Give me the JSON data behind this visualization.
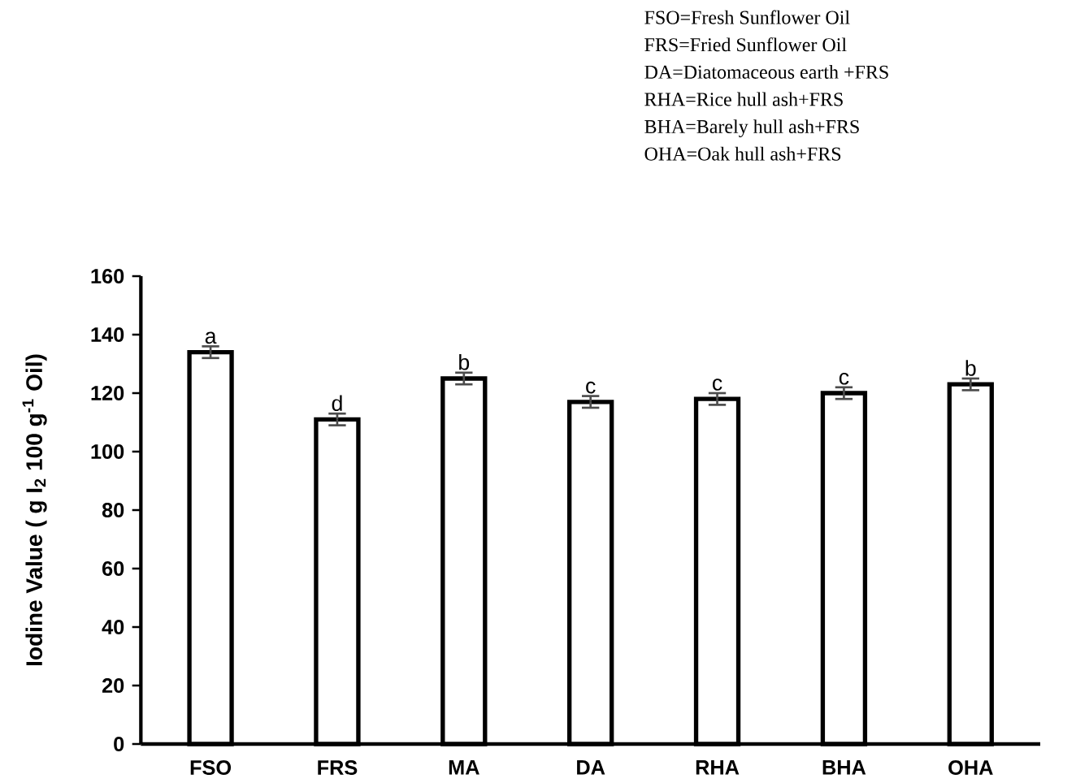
{
  "chart_data": {
    "type": "bar",
    "ylabel": "Iodine Value ( g I$_{2}$ 100 g$^{-1}$ Oil)",
    "categories": [
      "FSO",
      "FRS",
      "MA",
      "DA",
      "RHA",
      "BHA",
      "OHA"
    ],
    "values": [
      134,
      111,
      125,
      117,
      118,
      120,
      123
    ],
    "errors": [
      2,
      2,
      2,
      2,
      2,
      2,
      2
    ],
    "color": "#ffffff",
    "ylim": [
      0,
      160
    ],
    "yticks": [
      0,
      20,
      40,
      60,
      80,
      100,
      120,
      140,
      160
    ],
    "annotations": [
      "FSO=Fresh Sunflower Oil",
      "FRS=Fried Sunflower Oil",
      "DA=Diatomaceous earth +FRS",
      "RHA=Rice hull ash+FRS",
      "BHA=Barely hull ash+FRS",
      "OHA=Oak hull ash+FRS",
      {
        "text": "a",
        "x": "FSO",
        "y": 136
      },
      {
        "text": "d",
        "x": "FRS",
        "y": 113
      },
      {
        "text": "b",
        "x": "MA",
        "y": 127
      },
      {
        "text": "c",
        "x": "DA",
        "y": 119
      },
      {
        "text": "c",
        "x": "RHA",
        "y": 120
      },
      {
        "text": "c",
        "x": "BHA",
        "y": 122
      },
      {
        "text": "b",
        "x": "OHA",
        "y": 125
      }
    ]
  }
}
